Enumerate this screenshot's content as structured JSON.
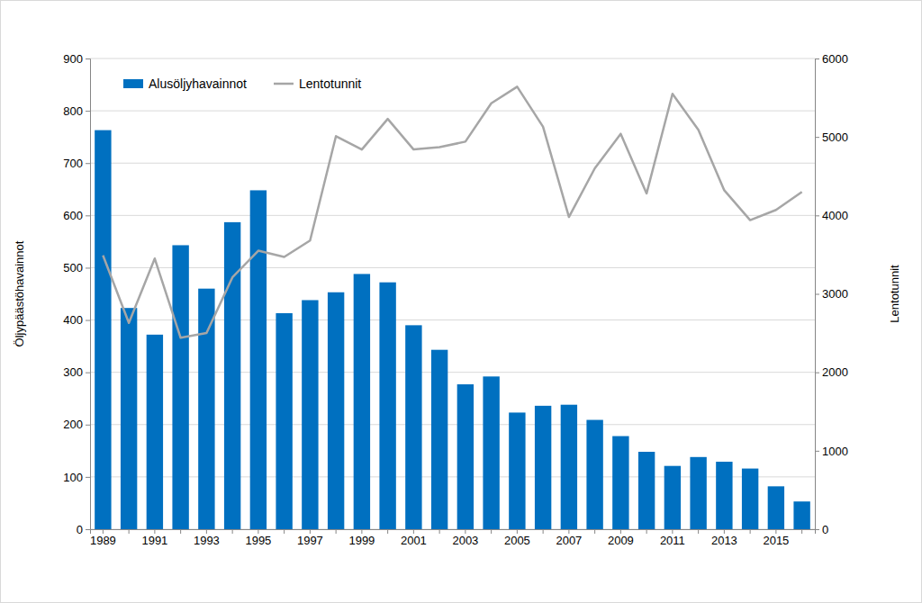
{
  "chart_data": {
    "type": "bar",
    "categories": [
      1989,
      null,
      1991,
      null,
      1993,
      null,
      1995,
      null,
      1997,
      null,
      1999,
      null,
      2001,
      null,
      2003,
      null,
      2005,
      null,
      2007,
      null,
      2009,
      null,
      2011,
      null,
      2013,
      null,
      2015,
      null
    ],
    "series": [
      {
        "name": "Alusöljyhavainnot",
        "type": "bar",
        "color": "#0070c0",
        "values": [
          763,
          423,
          372,
          543,
          460,
          587,
          648,
          413,
          438,
          453,
          488,
          472,
          390,
          343,
          277,
          292,
          223,
          236,
          238,
          209,
          178,
          148,
          121,
          138,
          129,
          116,
          82,
          53
        ]
      },
      {
        "name": "Lentotunnit",
        "type": "line",
        "axis": "y2",
        "color": "#a6a6a6",
        "values": [
          3490,
          2630,
          3450,
          2440,
          2500,
          3210,
          3550,
          3470,
          3680,
          5010,
          4840,
          5230,
          4840,
          4870,
          4940,
          5430,
          5640,
          5130,
          3980,
          4600,
          5040,
          4280,
          5550,
          5090,
          4320,
          3940,
          4070,
          4300
        ]
      }
    ],
    "y_label": "Öljypäästöhavainnot",
    "y2_label": "Lentotunnit",
    "ylim": [
      0,
      900
    ],
    "yticks": [
      0,
      100,
      200,
      300,
      400,
      500,
      600,
      700,
      800,
      900
    ],
    "y2lim": [
      0,
      6000
    ],
    "y2ticks": [
      0,
      1000,
      2000,
      3000,
      4000,
      5000,
      6000
    ],
    "grid": true,
    "legend": "top-left"
  }
}
